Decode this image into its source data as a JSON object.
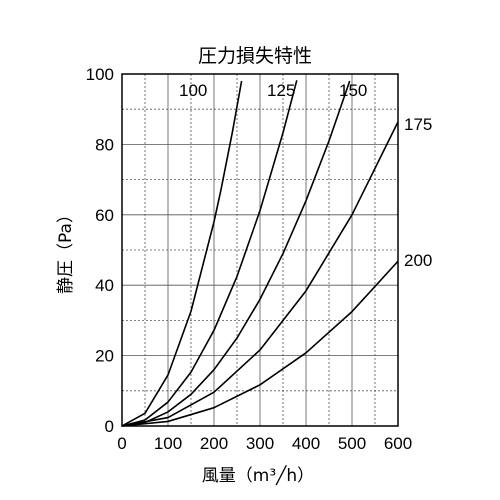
{
  "chart_data": {
    "type": "line",
    "title": "圧力損失特性",
    "xlabel": "風量（m³╱h）",
    "ylabel": "静圧（Pa）",
    "xlim": [
      0,
      600
    ],
    "ylim": [
      0,
      100
    ],
    "x_ticks": [
      "0",
      "100",
      "200",
      "300",
      "400",
      "500",
      "600"
    ],
    "y_ticks": [
      "0",
      "20",
      "40",
      "60",
      "80",
      "100"
    ],
    "grid": "dashed-minor",
    "series": [
      {
        "name": "100",
        "points": [
          [
            0,
            0
          ],
          [
            50,
            3.6
          ],
          [
            100,
            14.5
          ],
          [
            150,
            32.6
          ],
          [
            200,
            58
          ],
          [
            215,
            67
          ],
          [
            240,
            83.5
          ],
          [
            260,
            98
          ]
        ]
      },
      {
        "name": "125",
        "points": [
          [
            0,
            0
          ],
          [
            50,
            1.7
          ],
          [
            100,
            6.8
          ],
          [
            150,
            15.3
          ],
          [
            200,
            27.2
          ],
          [
            250,
            42.5
          ],
          [
            300,
            61.2
          ],
          [
            350,
            83.3
          ],
          [
            380,
            98.2
          ]
        ]
      },
      {
        "name": "150",
        "points": [
          [
            0,
            0
          ],
          [
            50,
            1
          ],
          [
            100,
            4
          ],
          [
            150,
            9
          ],
          [
            200,
            16
          ],
          [
            250,
            25
          ],
          [
            300,
            36
          ],
          [
            350,
            49
          ],
          [
            400,
            64
          ],
          [
            450,
            81
          ],
          [
            495,
            98
          ]
        ]
      },
      {
        "name": "175",
        "points": [
          [
            0,
            0
          ],
          [
            100,
            2.4
          ],
          [
            200,
            9.6
          ],
          [
            300,
            21.6
          ],
          [
            400,
            38.4
          ],
          [
            500,
            60
          ],
          [
            600,
            86.4
          ]
        ]
      },
      {
        "name": "200",
        "points": [
          [
            0,
            0
          ],
          [
            100,
            1.3
          ],
          [
            200,
            5.2
          ],
          [
            300,
            11.7
          ],
          [
            400,
            20.8
          ],
          [
            500,
            32.5
          ],
          [
            600,
            46.8
          ]
        ]
      }
    ]
  }
}
